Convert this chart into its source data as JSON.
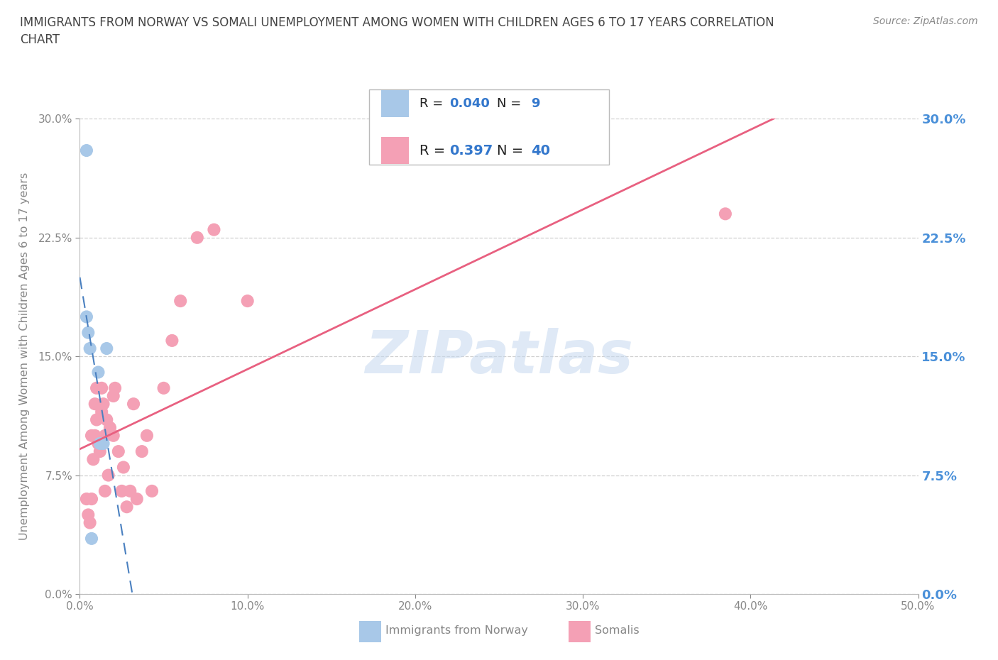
{
  "title": "IMMIGRANTS FROM NORWAY VS SOMALI UNEMPLOYMENT AMONG WOMEN WITH CHILDREN AGES 6 TO 17 YEARS CORRELATION\nCHART",
  "source": "Source: ZipAtlas.com",
  "ylabel": "Unemployment Among Women with Children Ages 6 to 17 years",
  "xlim": [
    0.0,
    0.5
  ],
  "ylim": [
    0.0,
    0.3
  ],
  "xticks": [
    0.0,
    0.1,
    0.2,
    0.3,
    0.4,
    0.5
  ],
  "yticks": [
    0.0,
    0.075,
    0.15,
    0.225,
    0.3
  ],
  "xticklabels": [
    "0.0%",
    "10.0%",
    "20.0%",
    "30.0%",
    "40.0%",
    "50.0%"
  ],
  "yticklabels": [
    "0.0%",
    "7.5%",
    "15.0%",
    "22.5%",
    "30.0%"
  ],
  "norway_color": "#a8c8e8",
  "somali_color": "#f4a0b5",
  "norway_line_color": "#4a80c0",
  "somali_line_color": "#e86080",
  "norway_R": 0.04,
  "norway_N": 9,
  "somali_R": 0.397,
  "somali_N": 40,
  "watermark": "ZIPatlas",
  "norway_x": [
    0.004,
    0.004,
    0.005,
    0.006,
    0.007,
    0.011,
    0.012,
    0.014,
    0.016
  ],
  "norway_y": [
    0.28,
    0.175,
    0.165,
    0.155,
    0.035,
    0.14,
    0.095,
    0.095,
    0.155
  ],
  "somali_x": [
    0.004,
    0.005,
    0.006,
    0.007,
    0.007,
    0.008,
    0.009,
    0.009,
    0.01,
    0.01,
    0.011,
    0.012,
    0.013,
    0.013,
    0.014,
    0.015,
    0.015,
    0.016,
    0.017,
    0.018,
    0.02,
    0.02,
    0.021,
    0.023,
    0.025,
    0.026,
    0.028,
    0.03,
    0.032,
    0.034,
    0.037,
    0.04,
    0.043,
    0.05,
    0.055,
    0.06,
    0.07,
    0.08,
    0.1,
    0.385
  ],
  "somali_y": [
    0.06,
    0.05,
    0.045,
    0.06,
    0.1,
    0.085,
    0.12,
    0.1,
    0.11,
    0.13,
    0.095,
    0.09,
    0.13,
    0.115,
    0.12,
    0.1,
    0.065,
    0.11,
    0.075,
    0.105,
    0.125,
    0.1,
    0.13,
    0.09,
    0.065,
    0.08,
    0.055,
    0.065,
    0.12,
    0.06,
    0.09,
    0.1,
    0.065,
    0.13,
    0.16,
    0.185,
    0.225,
    0.23,
    0.185,
    0.24
  ],
  "background_color": "#ffffff",
  "grid_color": "#d0d0d0",
  "title_color": "#444444",
  "tick_color": "#888888",
  "right_tick_color": "#4a90d9",
  "legend_R_color": "#3377cc",
  "axis_color": "#bbbbbb"
}
